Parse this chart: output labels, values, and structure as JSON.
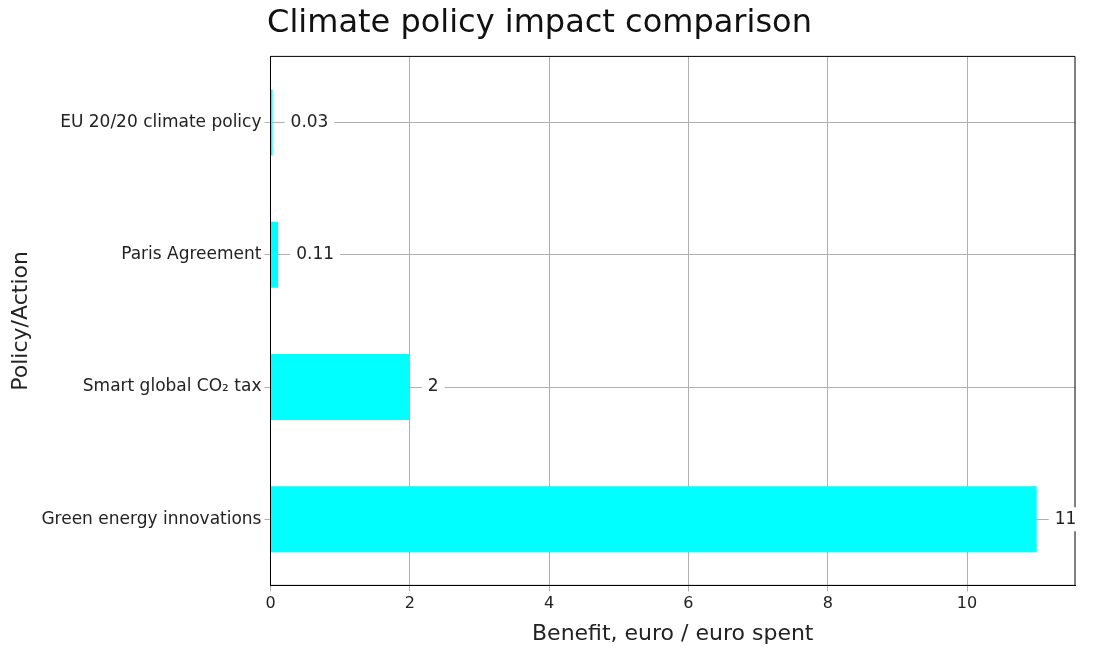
{
  "chart_data": {
    "type": "bar",
    "orientation": "horizontal",
    "title": "Climate policy impact comparison",
    "xlabel": "Benefit, euro / euro spent",
    "ylabel": "Policy/Action",
    "categories": [
      "EU 20/20 climate policy",
      "Paris Agreement",
      "Smart global CO₂ tax",
      "Green energy innovations"
    ],
    "values": [
      0.03,
      0.11,
      2,
      11
    ],
    "color": "#00ffff",
    "xlim": [
      0,
      11.55
    ],
    "xticks": [
      0,
      2,
      4,
      6,
      8,
      10
    ],
    "grid": true,
    "data_labels": true
  }
}
